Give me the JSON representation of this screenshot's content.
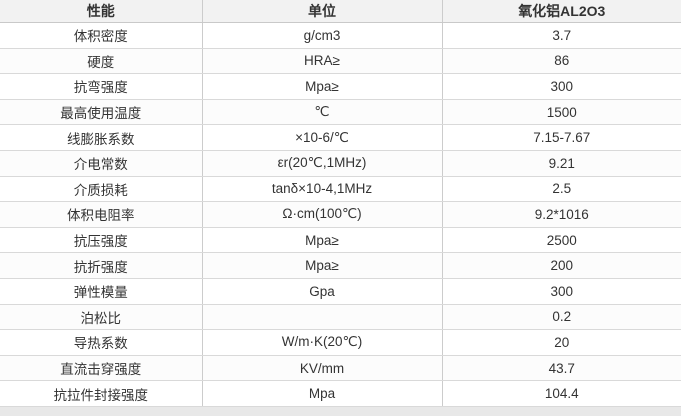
{
  "page": {
    "background_color": "#e8e8e8"
  },
  "table": {
    "title": "ceramic-material-properties",
    "headers": [
      "性能",
      "单位",
      "氧化铝AL2O3"
    ],
    "rows": [
      [
        "体积密度",
        "g/cm3",
        "3.7"
      ],
      [
        "硬度",
        "HRA≥",
        "86"
      ],
      [
        "抗弯强度",
        "Mpa≥",
        "300"
      ],
      [
        "最高使用温度",
        "℃",
        "1500"
      ],
      [
        "线膨胀系数",
        "×10-6/℃",
        "7.15-7.67"
      ],
      [
        "介电常数",
        "εr(20℃,1MHz)",
        "9.21"
      ],
      [
        "介质损耗",
        "tanδ×10-4,1MHz",
        "2.5"
      ],
      [
        "体积电阻率",
        "Ω·cm(100℃)",
        "9.2*1016"
      ],
      [
        "抗压强度",
        "Mpa≥",
        "2500"
      ],
      [
        "抗折强度",
        "Mpa≥",
        "200"
      ],
      [
        "弹性模量",
        "Gpa",
        "300"
      ],
      [
        "泊松比",
        "",
        "0.2"
      ],
      [
        "导热系数",
        "W/m·K(20℃)",
        "20"
      ],
      [
        "直流击穿强度",
        "KV/mm",
        "43.7"
      ],
      [
        "抗拉件封接强度",
        "Mpa",
        "104.4"
      ]
    ],
    "colors": {
      "header_bg": "#f2f2f2",
      "row_bg": "#ffffff",
      "row_alt_bg": "#fcfcfc",
      "border_vertical": "#cccccc",
      "border_horizontal": "#d9d9d9",
      "text": "#333333"
    }
  }
}
